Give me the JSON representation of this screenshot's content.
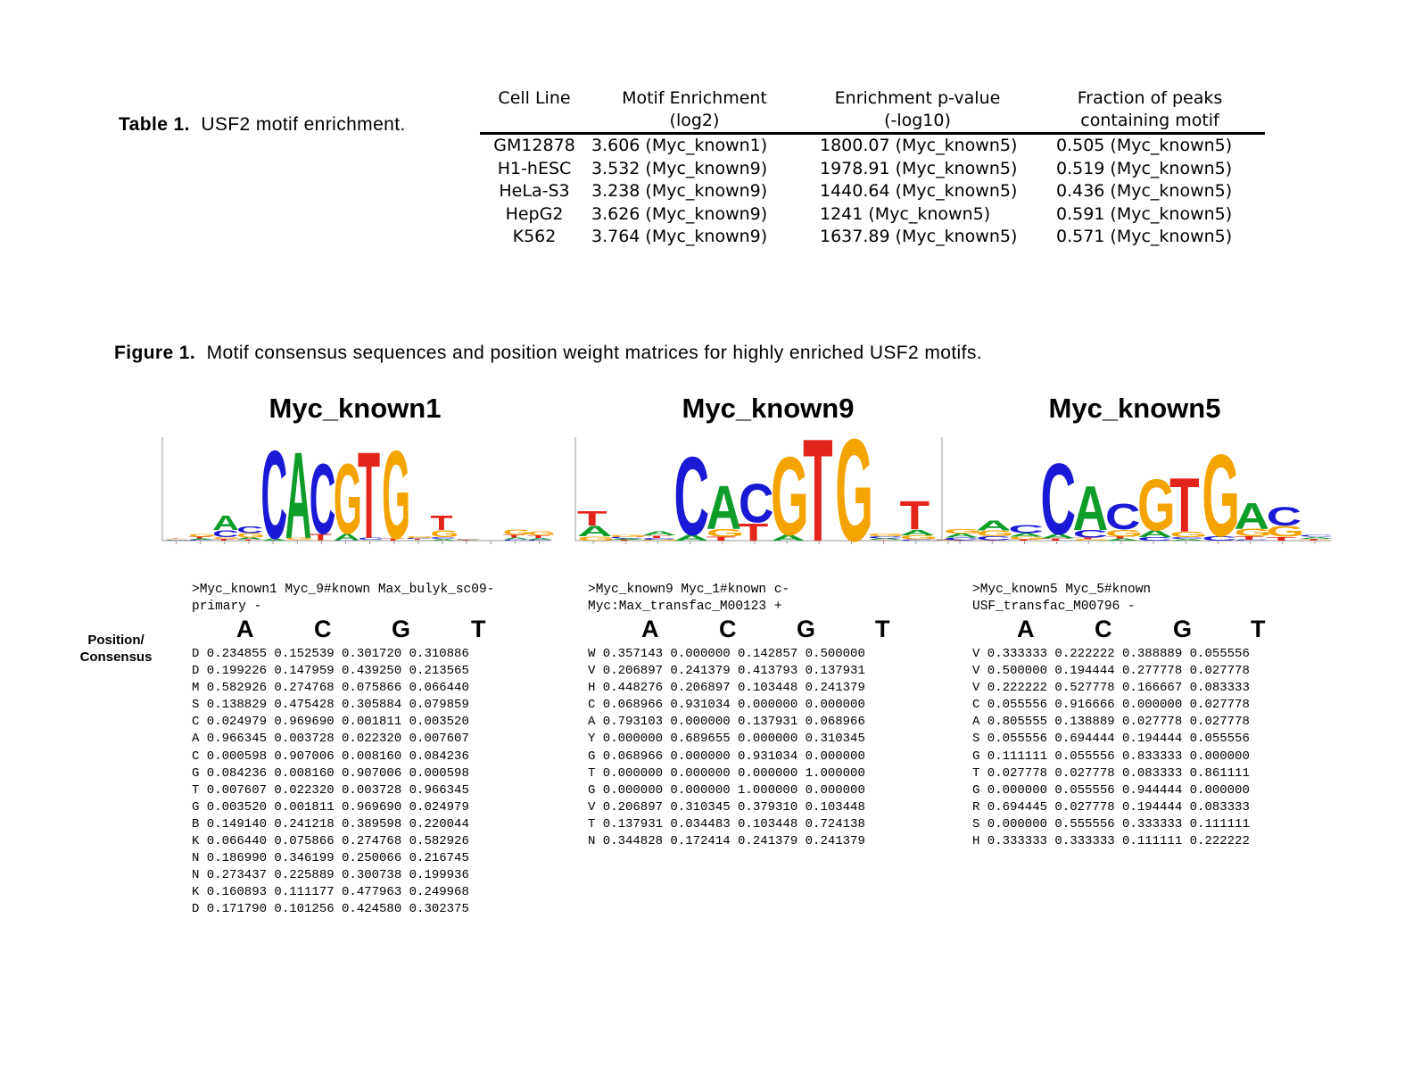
{
  "table1": {
    "label": "Table 1.",
    "caption": "USF2 motif enrichment.",
    "headers": [
      "Cell Line",
      [
        "Motif Enrichment",
        "(log2)"
      ],
      [
        "Enrichment p-value",
        "(-log10)"
      ],
      [
        "Fraction of peaks",
        "containing motif"
      ]
    ],
    "rows": [
      [
        "GM12878",
        "3.606 (Myc_known1)",
        "1800.07 (Myc_known5)",
        "0.505 (Myc_known5)"
      ],
      [
        "H1-hESC",
        "3.532 (Myc_known9)",
        "1978.91 (Myc_known5)",
        "0.519 (Myc_known5)"
      ],
      [
        "HeLa-S3",
        "3.238 (Myc_known9)",
        "1440.64 (Myc_known5)",
        "0.436 (Myc_known5)"
      ],
      [
        "HepG2",
        "3.626 (Myc_known9)",
        "1241      (Myc_known5)",
        "0.591 (Myc_known5)"
      ],
      [
        "K562",
        "3.764 (Myc_known9)",
        "1637.89 (Myc_known5)",
        "0.571 (Myc_known5)"
      ]
    ]
  },
  "figure1": {
    "label": "Figure 1.",
    "caption": "Motif consensus sequences and position weight matrices for highly enriched USF2 motifs.",
    "position_label": [
      "Position/",
      "Consensus"
    ],
    "column_heads": [
      "A",
      "C",
      "G",
      "T"
    ],
    "letter_colors": {
      "A": "#0f9d2a",
      "C": "#1a1ad6",
      "G": "#f5a300",
      "T": "#e3241b"
    },
    "motifs": [
      {
        "title": "Myc_known1",
        "header": [
          ">Myc_known1 Myc_9#known Max_bulyk_sc09-",
          "primary -"
        ],
        "rows": [
          "D 0.234855 0.152539 0.301720 0.310886",
          "D 0.199226 0.147959 0.439250 0.213565",
          "M 0.582926 0.274768 0.075866 0.066440",
          "S 0.138829 0.475428 0.305884 0.079859",
          "C 0.024979 0.969690 0.001811 0.003520",
          "A 0.966345 0.003728 0.022320 0.007607",
          "C 0.000598 0.907006 0.008160 0.084236",
          "G 0.084236 0.008160 0.907006 0.000598",
          "T 0.007607 0.022320 0.003728 0.966345",
          "G 0.003520 0.001811 0.969690 0.024979",
          "B 0.149140 0.241218 0.389598 0.220044",
          "K 0.066440 0.075866 0.274768 0.582926",
          "N 0.186990 0.346199 0.250066 0.216745",
          "N 0.273437 0.225889 0.300738 0.199936",
          "K 0.160893 0.111177 0.477963 0.249968",
          "D 0.171790 0.101256 0.424580 0.302375"
        ]
      },
      {
        "title": "Myc_known9",
        "header": [
          ">Myc_known9 Myc_1#known c-",
          "Myc:Max_transfac_M00123 +"
        ],
        "rows": [
          "W 0.357143 0.000000 0.142857 0.500000",
          "V 0.206897 0.241379 0.413793 0.137931",
          "H 0.448276 0.206897 0.103448 0.241379",
          "C 0.068966 0.931034 0.000000 0.000000",
          "A 0.793103 0.000000 0.137931 0.068966",
          "Y 0.000000 0.689655 0.000000 0.310345",
          "G 0.068966 0.000000 0.931034 0.000000",
          "T 0.000000 0.000000 0.000000 1.000000",
          "G 0.000000 0.000000 1.000000 0.000000",
          "V 0.206897 0.310345 0.379310 0.103448",
          "T 0.137931 0.034483 0.103448 0.724138",
          "N 0.344828 0.172414 0.241379 0.241379"
        ]
      },
      {
        "title": "Myc_known5",
        "header": [
          ">Myc_known5 Myc_5#known",
          "USF_transfac_M00796 -"
        ],
        "rows": [
          "V 0.333333 0.222222 0.388889 0.055556",
          "V 0.500000 0.194444 0.277778 0.027778",
          "V 0.222222 0.527778 0.166667 0.083333",
          "C 0.055556 0.916666 0.000000 0.027778",
          "A 0.805555 0.138889 0.027778 0.027778",
          "S 0.055556 0.694444 0.194444 0.055556",
          "G 0.111111 0.055556 0.833333 0.000000",
          "T 0.027778 0.027778 0.083333 0.861111",
          "G 0.000000 0.055556 0.944444 0.000000",
          "R 0.694445 0.027778 0.194444 0.083333",
          "S 0.000000 0.555556 0.333333 0.111111",
          "H 0.333333 0.333333 0.111111 0.222222"
        ]
      }
    ]
  }
}
